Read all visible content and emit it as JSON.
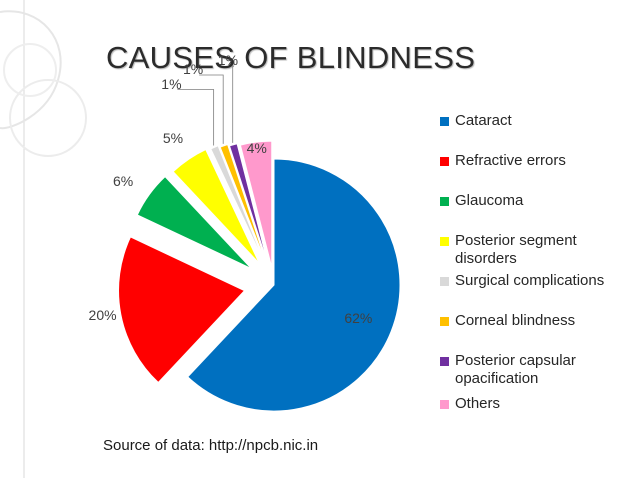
{
  "slide": {
    "title": "CAUSES OF BLINDNESS",
    "source": "Source of data: http://npcb.nic.in"
  },
  "chart_data": {
    "type": "pie",
    "title": "",
    "exploded": true,
    "legend_position": "right",
    "slices": [
      {
        "label": "Cataract",
        "value": 62,
        "value_label": "62%",
        "color": "#0070C0"
      },
      {
        "label": "Refractive errors",
        "value": 20,
        "value_label": "20%",
        "color": "#FF0000"
      },
      {
        "label": "Glaucoma",
        "value": 6,
        "value_label": "6%",
        "color": "#00B050"
      },
      {
        "label": "Posterior segment disorders",
        "value": 5,
        "value_label": "5%",
        "color": "#FFFF00"
      },
      {
        "label": "Surgical complications",
        "value": 1,
        "value_label": "1%",
        "color": "#D9D9D9"
      },
      {
        "label": "Corneal blindness",
        "value": 1,
        "value_label": "1%",
        "color": "#FFC000"
      },
      {
        "label": "Posterior capsular opacification",
        "value": 1,
        "value_label": "1%",
        "color": "#7030A0"
      },
      {
        "label": "Others",
        "value": 4,
        "value_label": "4%",
        "color": "#FF99CC"
      }
    ],
    "legend": [
      "Cataract",
      "Refractive errors",
      "Glaucoma",
      "Posterior segment disorders",
      "Surgical complications",
      "Corneal blindness",
      "Posterior capsular opacification",
      "Others"
    ]
  }
}
